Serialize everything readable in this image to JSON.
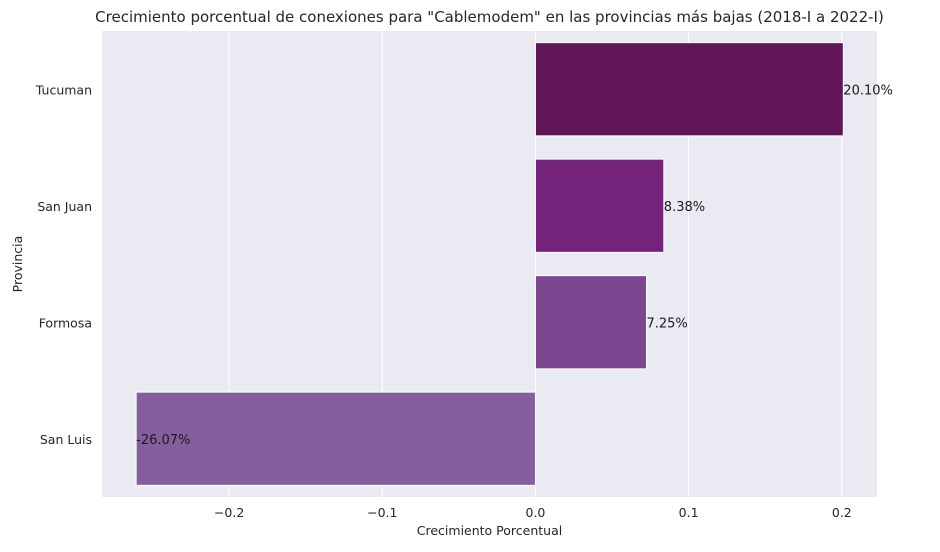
{
  "chart_data": {
    "type": "bar",
    "orientation": "horizontal",
    "title": "Crecimiento porcentual de conexiones para \"Cablemodem\" en las provincias más bajas (2018-I a 2022-I)",
    "xlabel": "Crecimiento Porcentual",
    "ylabel": "Provincia",
    "categories": [
      "Tucuman",
      "San Juan",
      "Formosa",
      "San Luis"
    ],
    "values": [
      0.201,
      0.0838,
      0.0725,
      -0.2607
    ],
    "data_labels": [
      "20.10%",
      "8.38%",
      "7.25%",
      "-26.07%"
    ],
    "bar_colors": [
      "#5f1558",
      "#74227a",
      "#7c4690",
      "#855e9e"
    ],
    "xlim": [
      -0.283,
      0.223
    ],
    "xticks": [
      -0.2,
      -0.1,
      0.0,
      0.1,
      0.2
    ],
    "xtick_labels": [
      "−0.2",
      "−0.1",
      "0.0",
      "0.1",
      "0.2"
    ],
    "grid": true,
    "background_color": "#eaeaf2",
    "grid_color": "#ffffff"
  }
}
